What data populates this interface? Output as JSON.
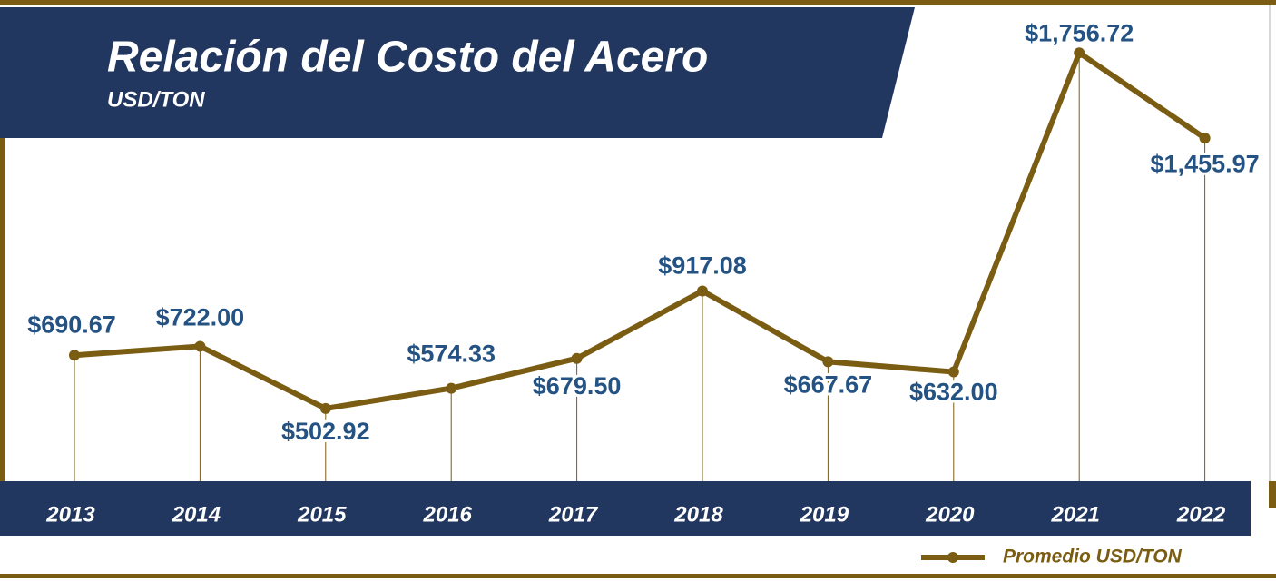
{
  "chart_data": {
    "type": "line",
    "title": "Relación del Costo del Acero",
    "subtitle": "USD/TON",
    "categories": [
      "2013",
      "2014",
      "2015",
      "2016",
      "2017",
      "2018",
      "2019",
      "2020",
      "2021",
      "2022"
    ],
    "series": [
      {
        "name": "Promedio USD/TON",
        "color": "#7a5c12",
        "values": [
          690.67,
          722.0,
          502.92,
          574.33,
          679.5,
          917.08,
          667.67,
          632.0,
          1756.72,
          1455.97
        ],
        "value_labels": [
          "$690.67",
          "$722.00",
          "$502.92",
          "$574.33",
          "$679.50",
          "$917.08",
          "$667.67",
          "$632.00",
          "$1,756.72",
          "$1,455.97"
        ]
      }
    ],
    "ylim": [
      0,
      1943
    ]
  }
}
